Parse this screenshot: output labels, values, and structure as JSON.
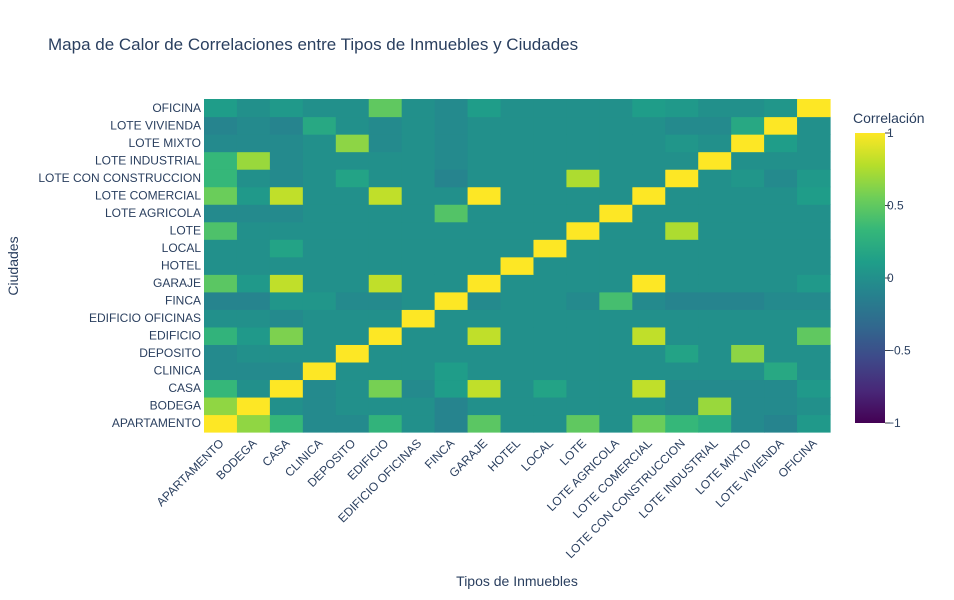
{
  "chart_data": {
    "type": "heatmap",
    "title": "Mapa de Calor de Correlaciones entre Tipos de Inmuebles y Ciudades",
    "xlabel": "Tipos de Inmuebles",
    "ylabel": "Ciudades",
    "categories": [
      "APARTAMENTO",
      "BODEGA",
      "CASA",
      "CLINICA",
      "DEPOSITO",
      "EDIFICIO",
      "EDIFICIO OFICINAS",
      "FINCA",
      "GARAJE",
      "HOTEL",
      "LOCAL",
      "LOTE",
      "LOTE AGRICOLA",
      "LOTE COMERCIAL",
      "LOTE CON CONSTRUCCION",
      "LOTE INDUSTRIAL",
      "LOTE MIXTO",
      "LOTE VIVIENDA",
      "OFICINA"
    ],
    "colorbar": {
      "title": "Correlación",
      "range": [
        -1,
        1
      ],
      "ticks": [
        1,
        0.5,
        0,
        -0.5,
        -1
      ],
      "tick_labels": [
        "1",
        "0.5",
        "0",
        "−0.5",
        "−1"
      ],
      "colorscale": "Viridis"
    },
    "values": [
      [
        1,
        0.66,
        0.33,
        -0.05,
        -0.05,
        0.3,
        0.0,
        -0.1,
        0.48,
        0.0,
        0.0,
        0.5,
        0.0,
        0.54,
        0.33,
        0.24,
        -0.05,
        -0.1,
        0.07
      ],
      [
        0.66,
        1,
        0.0,
        -0.05,
        0.0,
        0.0,
        0.0,
        -0.1,
        0.0,
        0.0,
        0.0,
        0.0,
        0.0,
        0.0,
        -0.05,
        0.69,
        -0.05,
        -0.05,
        0.0
      ],
      [
        0.33,
        0.0,
        1,
        -0.05,
        0.0,
        0.58,
        -0.05,
        0.1,
        0.81,
        0.0,
        0.15,
        0.0,
        0.0,
        0.81,
        -0.05,
        -0.05,
        -0.05,
        -0.05,
        0.07
      ],
      [
        -0.05,
        -0.05,
        -0.05,
        1,
        0.0,
        0.0,
        0.0,
        0.1,
        0.0,
        0.0,
        0.0,
        0.0,
        0.0,
        0.0,
        0.0,
        0.0,
        0.0,
        0.2,
        0.0
      ],
      [
        -0.05,
        0.0,
        0.0,
        0.0,
        1,
        0.0,
        0.0,
        0.0,
        0.0,
        0.0,
        0.0,
        0.0,
        0.0,
        0.0,
        0.15,
        0.0,
        0.65,
        0.0,
        0.0
      ],
      [
        0.3,
        0.07,
        0.6,
        0.0,
        0.0,
        1,
        0.0,
        0.0,
        0.81,
        0.0,
        0.0,
        0.0,
        0.0,
        0.81,
        0.0,
        0.0,
        0.0,
        0.0,
        0.5
      ],
      [
        0.0,
        0.0,
        -0.05,
        0.0,
        0.0,
        0.0,
        1,
        0.0,
        0.0,
        0.0,
        0.0,
        0.0,
        0.0,
        0.0,
        0.0,
        0.0,
        0.0,
        0.0,
        0.0
      ],
      [
        -0.1,
        -0.1,
        0.05,
        0.05,
        -0.05,
        -0.05,
        0.0,
        1,
        -0.05,
        0.0,
        0.0,
        -0.05,
        0.4,
        -0.05,
        -0.1,
        -0.1,
        -0.1,
        -0.05,
        -0.05
      ],
      [
        0.48,
        0.07,
        0.81,
        0.0,
        0.0,
        0.81,
        0.0,
        0.0,
        1,
        0.0,
        0.0,
        0.0,
        0.0,
        1,
        0.0,
        0.0,
        0.0,
        0.0,
        0.07
      ],
      [
        0.0,
        0.0,
        0.0,
        0.0,
        0.0,
        0.0,
        0.0,
        0.0,
        0.0,
        1,
        0.0,
        0.0,
        0.0,
        0.0,
        0.0,
        0.0,
        0.0,
        0.0,
        0.0
      ],
      [
        0.0,
        0.0,
        0.15,
        0.0,
        0.0,
        0.0,
        0.0,
        0.0,
        0.0,
        0.0,
        1,
        0.0,
        0.0,
        0.0,
        0.0,
        0.0,
        0.0,
        0.0,
        0.0
      ],
      [
        0.43,
        0.0,
        0.0,
        0.0,
        0.0,
        0.0,
        0.0,
        0.0,
        0.0,
        0.0,
        0.0,
        1,
        0.0,
        0.0,
        0.75,
        0.0,
        0.0,
        0.0,
        0.0
      ],
      [
        -0.05,
        -0.05,
        -0.05,
        0.0,
        0.0,
        0.0,
        0.0,
        0.45,
        0.0,
        0.0,
        0.0,
        0.0,
        1,
        0.0,
        0.0,
        0.0,
        0.0,
        0.0,
        0.0
      ],
      [
        0.54,
        0.07,
        0.81,
        0.0,
        0.0,
        0.81,
        0.0,
        0.0,
        1,
        0.0,
        0.0,
        0.0,
        0.0,
        1,
        0.0,
        0.0,
        0.0,
        0.0,
        0.1
      ],
      [
        0.33,
        0.0,
        -0.05,
        0.0,
        0.15,
        0.0,
        0.0,
        -0.1,
        0.0,
        0.0,
        0.0,
        0.75,
        0.0,
        0.0,
        1,
        0.0,
        0.05,
        -0.05,
        0.07
      ],
      [
        0.33,
        0.69,
        -0.05,
        0.0,
        0.0,
        0.0,
        0.0,
        -0.05,
        0.0,
        0.0,
        0.0,
        0.0,
        0.0,
        0.0,
        0.0,
        1,
        0.0,
        0.0,
        0.0
      ],
      [
        -0.05,
        -0.05,
        -0.05,
        0.0,
        0.65,
        -0.05,
        0.0,
        -0.05,
        0.0,
        0.0,
        0.0,
        0.0,
        0.0,
        0.0,
        0.05,
        0.0,
        1,
        0.1,
        0.0
      ],
      [
        -0.1,
        -0.05,
        -0.1,
        0.2,
        0.0,
        -0.05,
        0.0,
        -0.05,
        0.0,
        0.0,
        0.0,
        0.0,
        0.0,
        0.0,
        -0.05,
        -0.05,
        0.2,
        1,
        0.0
      ],
      [
        0.1,
        0.0,
        0.07,
        0.0,
        0.0,
        0.5,
        0.0,
        -0.05,
        0.1,
        0.0,
        0.0,
        0.0,
        0.0,
        0.1,
        0.07,
        0.0,
        0.0,
        0.05,
        1
      ]
    ]
  }
}
